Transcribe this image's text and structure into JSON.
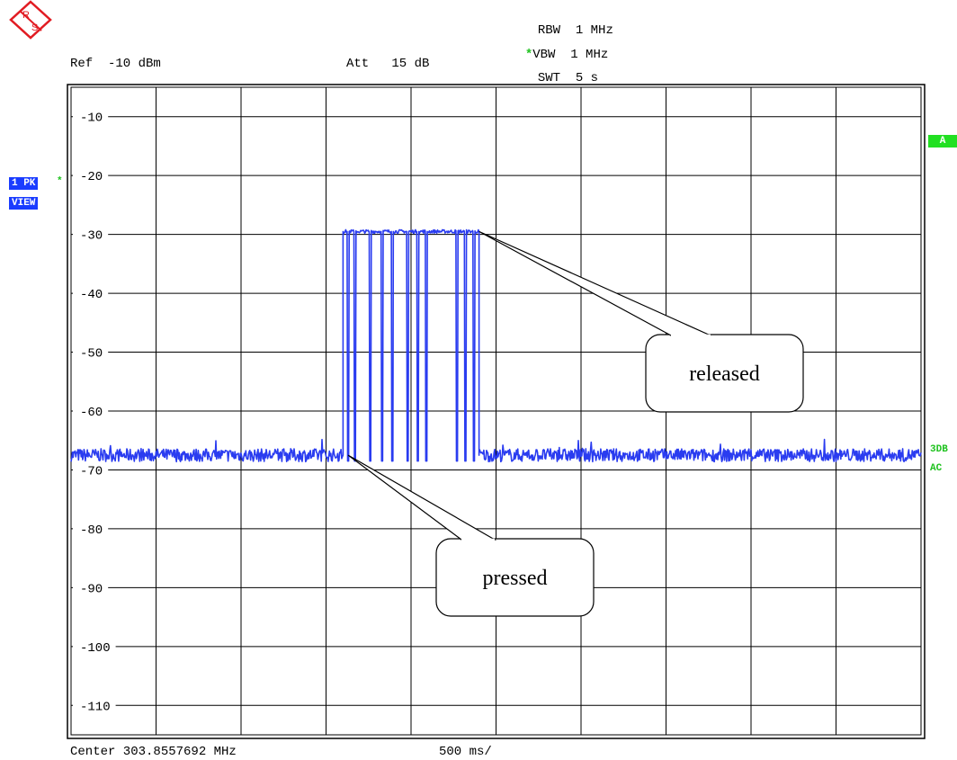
{
  "header": {
    "rbw_label": "RBW",
    "rbw_value": "1 MHz",
    "vbw_label": "VBW",
    "vbw_value": "1 MHz",
    "vbw_star": "*",
    "ref_text": "Ref  -10 dBm",
    "att_text": "Att   15 dB",
    "swt_label": "SWT",
    "swt_value": "5 s"
  },
  "trace_badge": {
    "line1": "1 PK",
    "line2": "VIEW",
    "star": "*"
  },
  "right_badges": {
    "a_label": "A",
    "db_label": "3DB",
    "ac_label": "AC"
  },
  "footer": {
    "center_text": "Center 303.8557692 MHz",
    "span_text": "500 ms/"
  },
  "colors": {
    "trace": "#2a3cf0",
    "grid": "#000000",
    "badge_blue": "#1a3cff",
    "badge_green": "#22e022"
  },
  "chart_data": {
    "type": "line",
    "y_axis": {
      "ylim": [
        -115,
        -5
      ],
      "ticks": [
        -10,
        -20,
        -30,
        -40,
        -50,
        -60,
        -70,
        -80,
        -90,
        -100,
        -110
      ]
    },
    "x_axis": {
      "time_per_div_ms": 500,
      "divisions": 10,
      "xlim_s": [
        0,
        5
      ]
    },
    "grid": true,
    "series": [
      {
        "noise_floor_dbm": -67.5,
        "burst_level_dbm": -29.5,
        "burst_start_s": 1.6,
        "burst_end_s": 2.4,
        "dips_s": [
          1.63,
          1.67,
          1.76,
          1.83,
          1.89,
          1.98,
          2.04,
          2.09,
          2.27,
          2.32,
          2.37
        ],
        "dip_level_dbm": -68.5
      }
    ],
    "annotations": [
      {
        "text": "released",
        "points_to": [
          2.4,
          -29.5
        ]
      },
      {
        "text": "pressed",
        "points_to": [
          1.63,
          -67.5
        ]
      }
    ]
  }
}
